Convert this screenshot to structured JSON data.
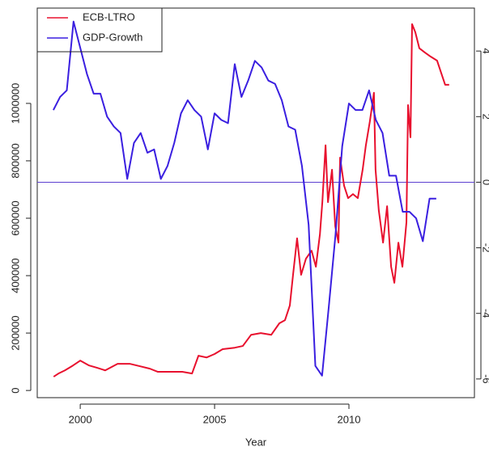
{
  "chart_data": {
    "type": "line",
    "xlabel": "Year",
    "xlim": [
      1998.4,
      2014.67
    ],
    "xticks": [
      2000,
      2005,
      2010
    ],
    "ylim": [
      -25000,
      1332000
    ],
    "yticks": [
      0,
      200000,
      400000,
      600000,
      800000,
      1000000
    ],
    "y2lim": [
      -6.57,
      5.31
    ],
    "y2ticks": [
      -6,
      -4,
      -2,
      0,
      2,
      4
    ],
    "y2_reference_line": 0,
    "reference_line_color": "#5b3fd0",
    "legend": "top-left",
    "series": [
      {
        "name": "ECB-LTRO",
        "color": "#e8102e",
        "x": [
          1999.01,
          1999.19,
          1999.43,
          1999.73,
          2000.0,
          2000.33,
          2000.63,
          2000.93,
          2001.39,
          2001.84,
          2002.2,
          2002.59,
          2002.89,
          2003.34,
          2003.8,
          2004.16,
          2004.4,
          2004.7,
          2005.0,
          2005.3,
          2005.75,
          2006.05,
          2006.36,
          2006.72,
          2007.11,
          2007.41,
          2007.62,
          2007.8,
          2007.92,
          2008.07,
          2008.22,
          2008.4,
          2008.61,
          2008.77,
          2008.92,
          2009.01,
          2009.13,
          2009.22,
          2009.37,
          2009.49,
          2009.61,
          2009.67,
          2009.82,
          2009.97,
          2010.15,
          2010.33,
          2010.51,
          2010.63,
          2010.78,
          2010.93,
          2010.99,
          2011.11,
          2011.27,
          2011.42,
          2011.57,
          2011.69,
          2011.84,
          2011.99,
          2012.14,
          2012.2,
          2012.29,
          2012.35,
          2012.47,
          2012.62,
          2012.83,
          2013.04,
          2013.28,
          2013.43,
          2013.58,
          2013.73
        ],
        "values": [
          48000,
          59000,
          70000,
          87000,
          104000,
          87000,
          79000,
          70000,
          93000,
          93000,
          85000,
          76000,
          65000,
          65000,
          65000,
          59000,
          121000,
          115000,
          127000,
          144000,
          149000,
          155000,
          194000,
          200000,
          194000,
          234000,
          245000,
          296000,
          403000,
          530000,
          403000,
          459000,
          487000,
          431000,
          544000,
          656000,
          854000,
          656000,
          769000,
          572000,
          515000,
          811000,
          713000,
          670000,
          684000,
          670000,
          769000,
          854000,
          938000,
          1037000,
          769000,
          628000,
          515000,
          642000,
          431000,
          375000,
          515000,
          431000,
          586000,
          994000,
          882000,
          1276000,
          1248000,
          1192000,
          1177000,
          1163000,
          1149000,
          1107000,
          1065000,
          1065000
        ]
      },
      {
        "name": "GDP-Growth",
        "color": "#3a1fe0",
        "axis": "y2",
        "x": [
          1999.0,
          1999.25,
          1999.5,
          1999.75,
          2000.0,
          2000.25,
          2000.5,
          2000.75,
          2001.0,
          2001.25,
          2001.5,
          2001.75,
          2002.0,
          2002.25,
          2002.5,
          2002.75,
          2003.0,
          2003.25,
          2003.5,
          2003.75,
          2004.0,
          2004.25,
          2004.5,
          2004.75,
          2005.0,
          2005.25,
          2005.5,
          2005.75,
          2006.0,
          2006.25,
          2006.5,
          2006.75,
          2007.0,
          2007.25,
          2007.5,
          2007.75,
          2008.0,
          2008.25,
          2008.5,
          2008.75,
          2009.0,
          2009.25,
          2009.5,
          2009.75,
          2010.0,
          2010.25,
          2010.5,
          2010.75,
          2011.0,
          2011.25,
          2011.5,
          2011.75,
          2012.0,
          2012.25,
          2012.5,
          2012.75,
          2013.0,
          2013.25
        ],
        "values": [
          2.2,
          2.6,
          2.8,
          4.9,
          4.1,
          3.3,
          2.7,
          2.7,
          2.0,
          1.7,
          1.5,
          0.1,
          1.2,
          1.5,
          0.9,
          1.0,
          0.1,
          0.5,
          1.2,
          2.1,
          2.5,
          2.2,
          2.0,
          1.0,
          2.1,
          1.9,
          1.8,
          3.6,
          2.6,
          3.1,
          3.7,
          3.5,
          3.1,
          3.0,
          2.5,
          1.7,
          1.6,
          0.5,
          -1.3,
          -5.6,
          -5.9,
          -3.8,
          -1.6,
          1.1,
          2.4,
          2.2,
          2.2,
          2.8,
          1.9,
          1.5,
          0.2,
          0.2,
          -0.9,
          -0.9,
          -1.1,
          -1.8,
          -0.5,
          -0.5
        ]
      }
    ]
  }
}
